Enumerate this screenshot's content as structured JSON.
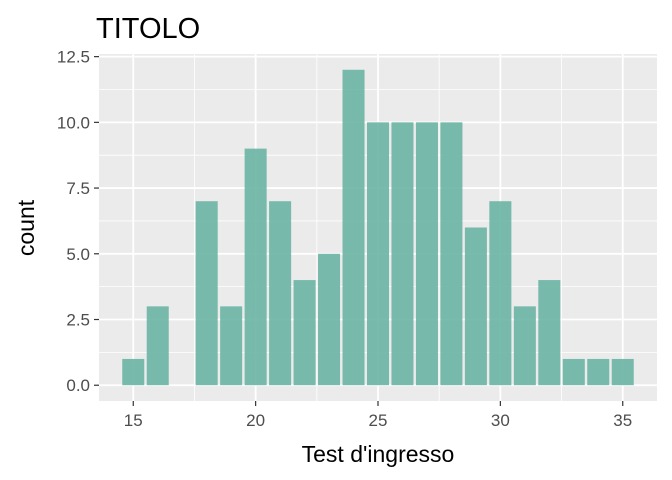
{
  "chart_data": {
    "type": "bar",
    "title": "TITOLO",
    "xlabel": "Test d'ingresso",
    "ylabel": "count",
    "x": [
      15,
      16,
      18,
      19,
      20,
      21,
      22,
      23,
      24,
      25,
      26,
      27,
      28,
      29,
      30,
      31,
      32,
      33,
      34,
      35
    ],
    "values": [
      1,
      3,
      7,
      3,
      9,
      7,
      4,
      5,
      12,
      10,
      10,
      10,
      10,
      6,
      7,
      3,
      4,
      1,
      1,
      1
    ],
    "xlim": [
      13.6,
      36.4
    ],
    "ylim": [
      -0.6,
      12.6
    ],
    "x_ticks": [
      15,
      20,
      25,
      30,
      35
    ],
    "x_tick_labels": [
      "15",
      "20",
      "25",
      "30",
      "35"
    ],
    "y_ticks": [
      0,
      2.5,
      5,
      7.5,
      10,
      12.5
    ],
    "y_tick_labels": [
      "0.0",
      "2.5",
      "5.0",
      "7.5",
      "10.0",
      "12.5"
    ],
    "bar_color": "#66b2a0",
    "panel_background": "#ebebeb",
    "grid": true,
    "legend": "none"
  }
}
